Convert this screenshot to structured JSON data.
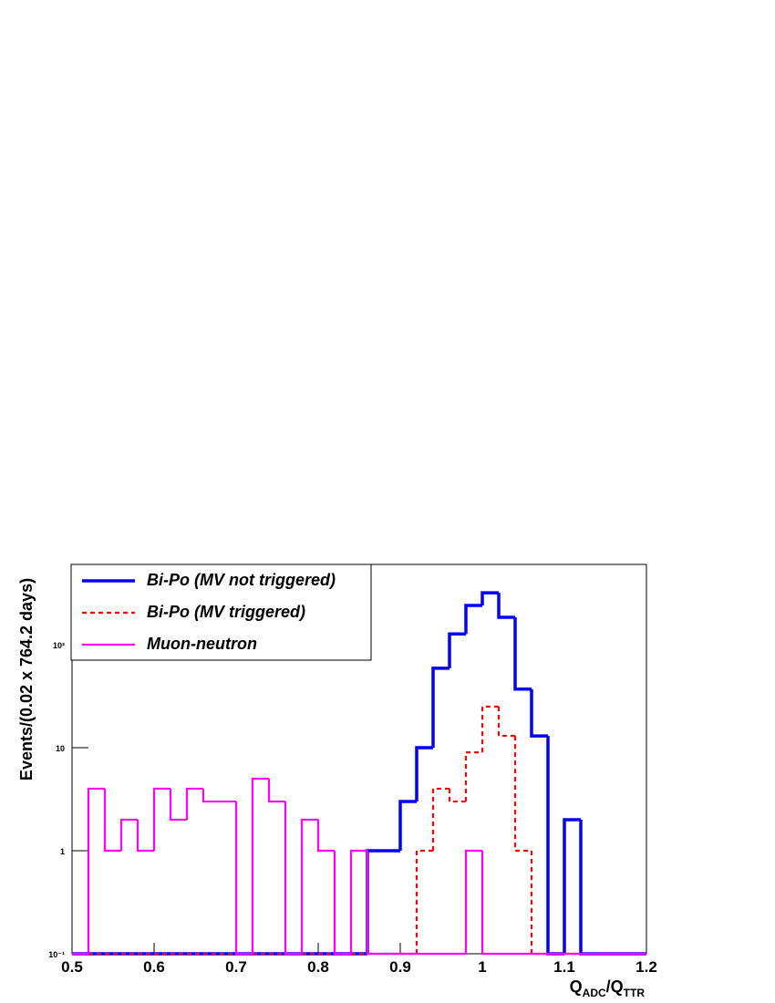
{
  "chart_data": {
    "type": "histogram",
    "x_label": [
      "Q",
      "ADC",
      "/Q",
      "TTR"
    ],
    "y_label": "Events/(0.02 x 764.2 days)",
    "bins": [
      0.5,
      0.52,
      0.54,
      0.56,
      0.58,
      0.6,
      0.62,
      0.64,
      0.66,
      0.68,
      0.7,
      0.72,
      0.74,
      0.76,
      0.78,
      0.8,
      0.82,
      0.84,
      0.86,
      0.88,
      0.9,
      0.92,
      0.94,
      0.96,
      0.98,
      1.0,
      1.02,
      1.04,
      1.06,
      1.08,
      1.1,
      1.12,
      1.14,
      1.16,
      1.18,
      1.2
    ],
    "series": [
      {
        "name": "Bi-Po (MV not triggered)",
        "color": "#0000ff",
        "style": "solid",
        "values": [
          0,
          0,
          0,
          0,
          0,
          0,
          0,
          0,
          0,
          0,
          0,
          0,
          0,
          0,
          0,
          0,
          0,
          0,
          1,
          1,
          3,
          10,
          59,
          127,
          240,
          318,
          184,
          37,
          13,
          0,
          2,
          0,
          0,
          0,
          0
        ]
      },
      {
        "name": "Bi-Po (MV triggered)",
        "color": "#ff0000",
        "style": "dashed",
        "values": [
          0,
          0,
          0,
          0,
          0,
          0,
          0,
          0,
          0,
          0,
          0,
          0,
          0,
          0,
          0,
          0,
          0,
          0,
          0,
          0,
          0,
          1,
          4,
          3,
          9,
          25,
          13,
          1,
          0,
          0,
          0,
          0,
          0,
          0,
          0
        ]
      },
      {
        "name": "Muon-neutron",
        "color": "#ff00ff",
        "style": "solid",
        "values": [
          0,
          4,
          1,
          2,
          1,
          4,
          2,
          4,
          3,
          3,
          0,
          5,
          3,
          0,
          2,
          1,
          0,
          1,
          0,
          0,
          0,
          0,
          0,
          0,
          1,
          0,
          0,
          0,
          0,
          0,
          0,
          0,
          0,
          0,
          0
        ]
      }
    ],
    "xlim": [
      0.5,
      1.2
    ],
    "xticks": [
      0.5,
      0.6,
      0.7,
      0.8,
      0.9,
      1,
      1.1,
      1.2
    ],
    "ylim": [
      0.1,
      600
    ],
    "log_y": true,
    "yticks": [
      {
        "value": 0.1,
        "label": "10⁻¹"
      },
      1,
      10,
      {
        "value": 100,
        "label": "10²"
      }
    ],
    "legend": "top-left"
  }
}
